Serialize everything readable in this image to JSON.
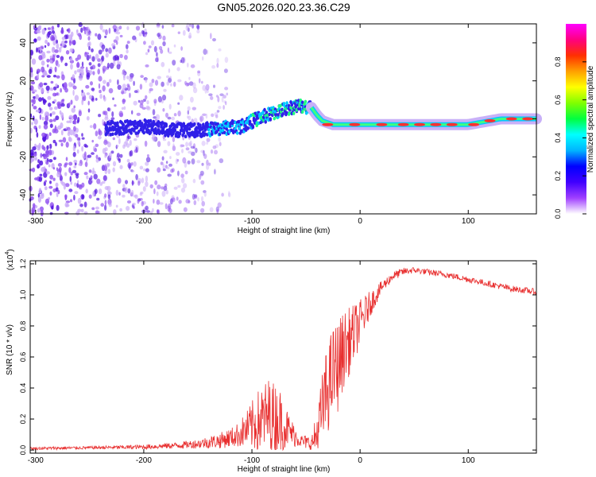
{
  "title": "GN05.2026.020.23.36.C29",
  "chart_data": [
    {
      "type": "heatmap",
      "title": "GN05.2026.020.23.36.C29",
      "xlabel": "Height of straight line (km)",
      "ylabel": "Frequency (Hz)",
      "xlim": [
        -305,
        163
      ],
      "ylim": [
        -50,
        50
      ],
      "xticks": [
        -300,
        -200,
        -100,
        0,
        100
      ],
      "xtick_labels": [
        "-300",
        "-200",
        "-100",
        "0",
        "100"
      ],
      "yticks": [
        -40,
        -20,
        0,
        20,
        40
      ],
      "ytick_labels": [
        "-40",
        "-20",
        "0",
        "20",
        "40"
      ],
      "colorbar": {
        "label": "Normalized spectral amplitude",
        "range": [
          0,
          1
        ],
        "ticks": [
          0.0,
          0.2,
          0.4,
          0.6,
          0.8
        ],
        "tick_labels": [
          "0.0",
          "0.2",
          "0.4",
          "0.6",
          "0.8"
        ],
        "colors": [
          "#ffffff",
          "#a040ff",
          "#4000ff",
          "#0000ff",
          "#00b4ff",
          "#00ffff",
          "#00ff40",
          "#80ff00",
          "#ffff00",
          "#ffa000",
          "#ff3000",
          "#ff0080",
          "#ff00ff"
        ]
      },
      "ridge": {
        "description_points_x": [
          -235,
          -200,
          -170,
          -150,
          -130,
          -110,
          -95,
          -80,
          -65,
          -55,
          -45,
          -40,
          -35,
          -25,
          -15,
          0,
          20,
          60,
          100,
          130,
          163
        ],
        "description_points_y": [
          -5,
          -4,
          -6,
          -6,
          -5,
          -4,
          0,
          3,
          6,
          7,
          6,
          2,
          -1,
          -3,
          -3,
          -3,
          -3,
          -3,
          -3,
          0,
          0
        ]
      }
    },
    {
      "type": "line",
      "title": "",
      "xlabel": "Height of straight line (km)",
      "ylabel": "SNR (10 * v/v)",
      "scale_label": "(x10",
      "scale_exponent": "4",
      "scale_close": ")",
      "color": "#e83030",
      "xlim": [
        -305,
        163
      ],
      "ylim": [
        -0.02,
        1.22
      ],
      "xticks": [
        -300,
        -200,
        -100,
        0,
        100
      ],
      "xtick_labels": [
        "-300",
        "-200",
        "-100",
        "0",
        "100"
      ],
      "yticks": [
        0.0,
        0.2,
        0.4,
        0.6,
        0.8,
        1.0,
        1.2
      ],
      "ytick_labels": [
        "0.0",
        "0.2",
        "0.4",
        "0.6",
        "0.8",
        "1.0",
        "1.2"
      ],
      "envelope_x": [
        -305,
        -250,
        -200,
        -170,
        -150,
        -130,
        -115,
        -105,
        -95,
        -85,
        -75,
        -65,
        -55,
        -45,
        -40,
        -35,
        -30,
        -25,
        -20,
        -15,
        -10,
        0,
        10,
        20,
        30,
        40,
        50,
        60,
        80,
        100,
        120,
        140,
        163
      ],
      "envelope_mean": [
        0.01,
        0.015,
        0.02,
        0.03,
        0.04,
        0.06,
        0.09,
        0.13,
        0.18,
        0.22,
        0.2,
        0.12,
        0.06,
        0.04,
        0.1,
        0.25,
        0.4,
        0.5,
        0.55,
        0.65,
        0.7,
        0.82,
        0.95,
        1.05,
        1.12,
        1.15,
        1.16,
        1.15,
        1.13,
        1.1,
        1.07,
        1.04,
        1.02
      ],
      "envelope_spread": [
        0.01,
        0.01,
        0.015,
        0.02,
        0.03,
        0.05,
        0.07,
        0.12,
        0.2,
        0.25,
        0.22,
        0.1,
        0.04,
        0.05,
        0.15,
        0.25,
        0.3,
        0.3,
        0.3,
        0.25,
        0.22,
        0.15,
        0.08,
        0.04,
        0.03,
        0.025,
        0.02,
        0.02,
        0.02,
        0.02,
        0.02,
        0.02,
        0.02
      ]
    }
  ]
}
